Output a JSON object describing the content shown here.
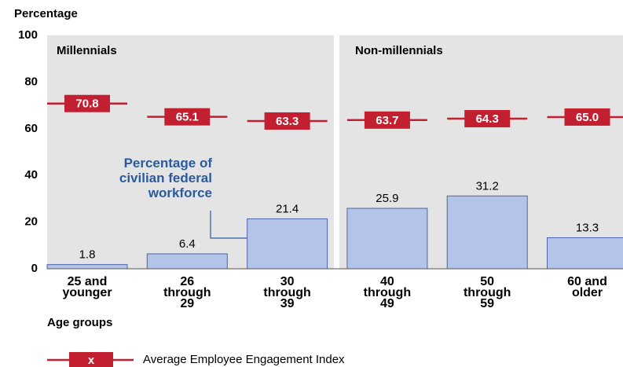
{
  "chart_data": {
    "type": "bar",
    "y_label": "Percentage",
    "x_label": "Age groups",
    "panels": [
      "Millennials",
      "Non-millennials"
    ],
    "categories": [
      "25 and\nyounger",
      "26\nthrough\n29",
      "30\nthrough\n39",
      "40\nthrough\n49",
      "50\nthrough\n59",
      "60 and\nolder"
    ],
    "series": [
      {
        "name": "Percentage of\ncivilian federal\nworkforce",
        "color": "#b4c3e8",
        "values": [
          1.8,
          6.4,
          21.4,
          25.9,
          31.2,
          13.3
        ]
      },
      {
        "name": "Average Employee Engagement Index",
        "color": "#c21f30",
        "values": [
          70.8,
          65.1,
          63.3,
          63.7,
          64.3,
          65.0
        ],
        "value_labels": [
          "70.8",
          "65.1",
          "63.3",
          "63.7",
          "64.3",
          "65.0"
        ],
        "legend_marker": "x"
      }
    ],
    "ylim": [
      0,
      100
    ],
    "yticks": [
      0,
      20,
      40,
      60,
      80,
      100
    ],
    "grid": false
  }
}
